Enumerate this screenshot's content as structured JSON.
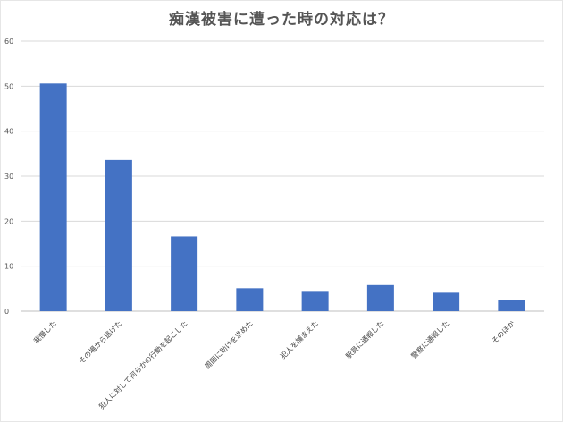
{
  "chart_data": {
    "type": "bar",
    "title": "痴漢被害に遭った時の対応は？",
    "xlabel": "",
    "ylabel": "",
    "ylim": [
      0,
      60
    ],
    "yticks": [
      0,
      10,
      20,
      30,
      40,
      50,
      60
    ],
    "grid": true,
    "bar_color": "#4472C4",
    "categories": [
      "我慢した",
      "その場から逃げた",
      "犯人に対して何らかの行動を起こした",
      "周囲に助けを求めた",
      "犯人を捕まえた",
      "駅員に通報した",
      "警察に通報した",
      "そのほか"
    ],
    "values": [
      50.6,
      33.6,
      16.6,
      5.1,
      4.5,
      5.8,
      4.1,
      2.4
    ]
  }
}
